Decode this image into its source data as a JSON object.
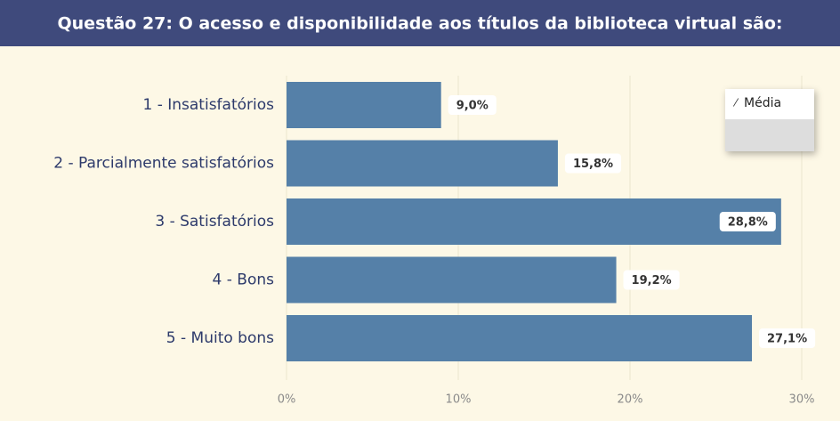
{
  "chart_data": {
    "type": "bar",
    "orientation": "horizontal",
    "title": "Questão 27: O acesso e disponibilidade aos títulos da biblioteca virtual são:",
    "categories": [
      "1 - Insatisfatórios",
      "2 - Parcialmente satisfatórios",
      "3 - Satisfatórios",
      "4 - Bons",
      "5 - Muito bons"
    ],
    "series": [
      {
        "name": "Média",
        "color": "#5580a8",
        "values": [
          9.0,
          15.8,
          28.8,
          19.2,
          27.1
        ],
        "value_labels": [
          "9,0%",
          "15,8%",
          "28,8%",
          "19,2%",
          "27,1%"
        ]
      }
    ],
    "xlim": [
      0,
      31
    ],
    "xticks": [
      {
        "value": 0,
        "label": "0%"
      },
      {
        "value": 10,
        "label": "10%"
      },
      {
        "value": 20,
        "label": "20%"
      },
      {
        "value": 30,
        "label": "30%"
      }
    ],
    "grid": true
  }
}
